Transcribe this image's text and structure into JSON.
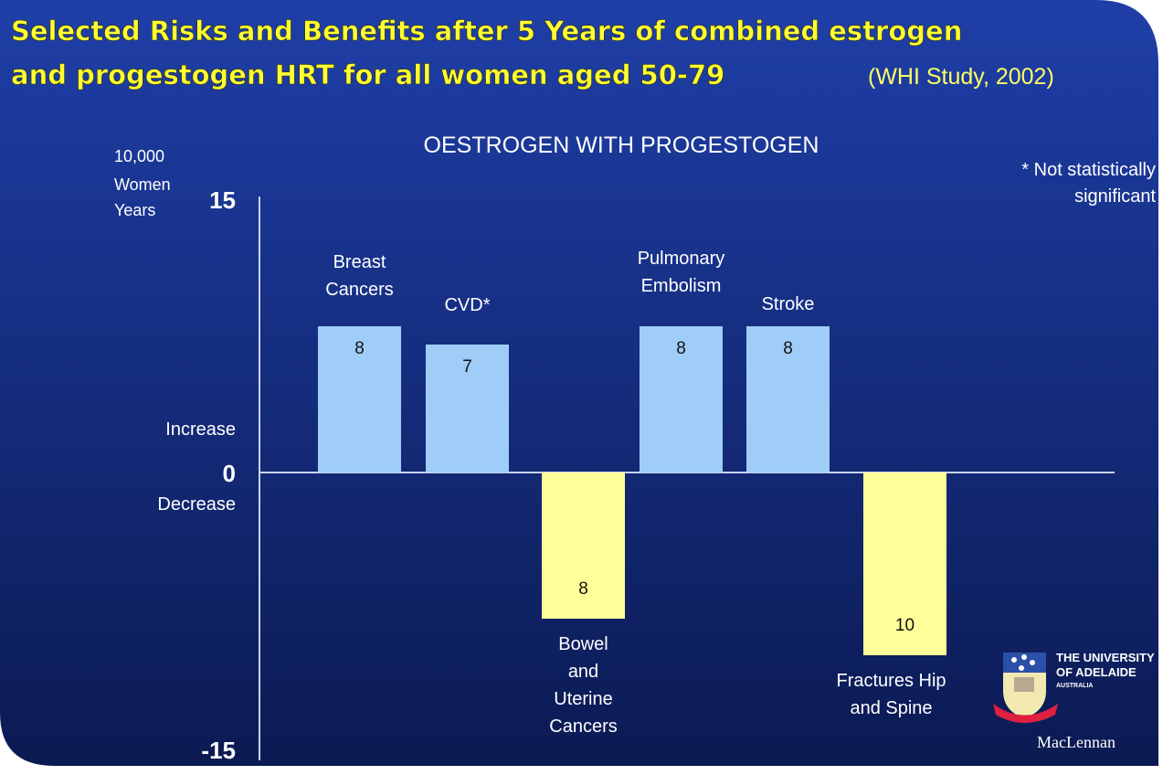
{
  "title_line1": "Selected Risks and Benefits after 5 Years of combined estrogen",
  "title_line2": "and progestogen HRT for all women aged 50-79",
  "source": "(WHI Study, 2002)",
  "logo": {
    "text": "THE UNIVERSITY OF ADELAIDE AUSTRALIA",
    "author": "MacLennan"
  },
  "chart_data": {
    "type": "bar",
    "title": "OESTROGEN WITH PROGESTOGEN",
    "ylabel": [
      "10,000",
      "Women",
      "Years"
    ],
    "ylim": [
      -15,
      15
    ],
    "yticks": [
      "15",
      "0",
      "-15"
    ],
    "increase_label": "Increase",
    "decrease_label": "Decrease",
    "note": [
      "* Not statistically",
      "significant"
    ],
    "categories": [
      [
        "Breast",
        "Cancers"
      ],
      [
        "CVD*"
      ],
      [
        "Bowel",
        "and",
        "Uterine",
        "Cancers"
      ],
      [
        "Pulmonary",
        "Embolism"
      ],
      [
        "Stroke"
      ],
      [
        "Fractures Hip",
        "and Spine"
      ]
    ],
    "values": [
      8,
      7,
      -8,
      8,
      8,
      -10
    ],
    "data_labels": [
      "8",
      "7",
      "8",
      "8",
      "8",
      "10"
    ],
    "colors": {
      "increase": "#9fcdf7",
      "decrease": "#ffff99",
      "background_top": "#1f3fa8",
      "background_bottom": "#0b1a52"
    },
    "grid": false
  }
}
